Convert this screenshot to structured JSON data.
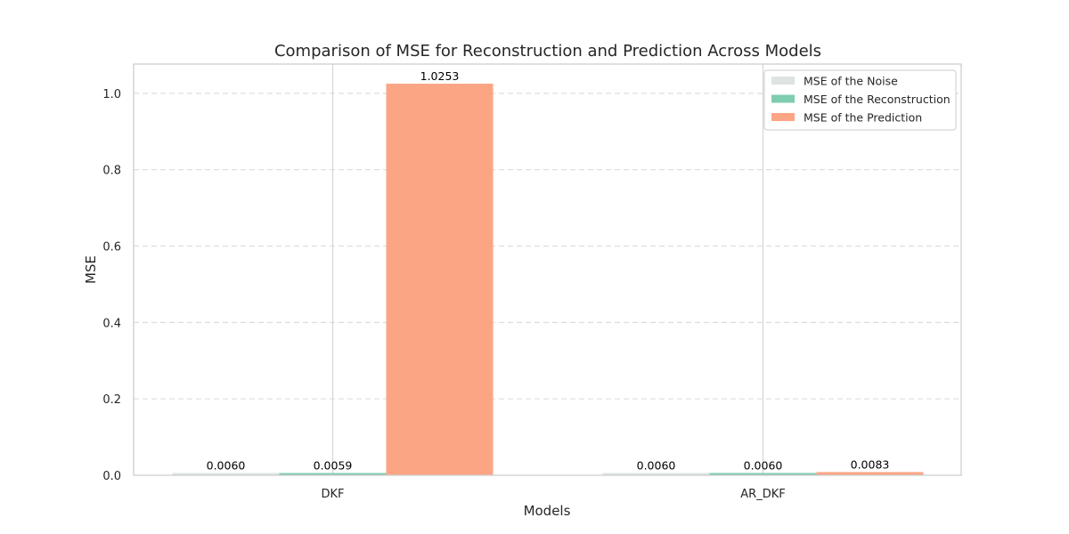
{
  "chart_data": {
    "type": "bar",
    "title": "Comparison of MSE for Reconstruction and Prediction Across Models",
    "xlabel": "Models",
    "ylabel": "MSE",
    "categories": [
      "DKF",
      "AR_DKF"
    ],
    "series": [
      {
        "name": "MSE of the Noise",
        "values": [
          0.006,
          0.006
        ],
        "labels": [
          "0.0060",
          "0.0060"
        ],
        "color": "#dfe3e3"
      },
      {
        "name": "MSE of the Reconstruction",
        "values": [
          0.0059,
          0.006
        ],
        "labels": [
          "0.0059",
          "0.0060"
        ],
        "color": "#7fcdb0"
      },
      {
        "name": "MSE of the Prediction",
        "values": [
          1.0253,
          0.0083
        ],
        "labels": [
          "1.0253",
          "0.0083"
        ],
        "color": "#fca584"
      }
    ],
    "ylim": [
      0,
      1.0766
    ],
    "yticks": [
      "0.0",
      "0.2",
      "0.4",
      "0.6",
      "0.8",
      "1.0"
    ],
    "grid": "y-dashed",
    "legend": "top-right"
  }
}
